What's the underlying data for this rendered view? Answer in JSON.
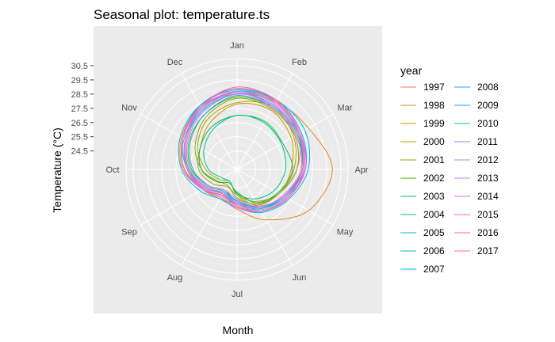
{
  "chart_data": {
    "type": "line",
    "coord": "polar",
    "title": "Seasonal plot: temperature.ts",
    "xlabel": "Month",
    "ylabel": "Temperature (°C)",
    "months": [
      "Jan",
      "Feb",
      "Mar",
      "Apr",
      "May",
      "Jun",
      "Jul",
      "Aug",
      "Sep",
      "Oct",
      "Nov",
      "Dec"
    ],
    "y_ticks": [
      24.5,
      25.5,
      26.5,
      27.5,
      28.5,
      29.5,
      30.5
    ],
    "ylim": [
      23.2,
      31.0
    ],
    "grid": true,
    "legend_title": "year",
    "legend_position": "right",
    "series": [
      {
        "name": "1997",
        "color": "#F8766D",
        "values": [
          28.7,
          28.6,
          28.2,
          27.4,
          26.6,
          26.1,
          25.6,
          25.6,
          26.0,
          26.9,
          27.6,
          28.2
        ]
      },
      {
        "name": "1998",
        "color": "#E7851E",
        "values": [
          28.5,
          28.7,
          29.0,
          29.9,
          29.0,
          27.3,
          26.0,
          25.5,
          26.0,
          27.0,
          27.7,
          28.3
        ]
      },
      {
        "name": "1999",
        "color": "#D09400",
        "values": [
          27.8,
          28.0,
          27.6,
          27.0,
          26.6,
          25.8,
          25.0,
          24.6,
          25.2,
          25.9,
          26.2,
          27.0
        ]
      },
      {
        "name": "2000",
        "color": "#B2A100",
        "values": [
          27.9,
          28.3,
          27.8,
          27.2,
          26.6,
          26.1,
          25.0,
          24.2,
          24.6,
          25.4,
          26.4,
          27.3
        ]
      },
      {
        "name": "2001",
        "color": "#89AC00",
        "values": [
          28.2,
          28.1,
          27.9,
          27.4,
          26.6,
          26.0,
          25.2,
          24.5,
          24.8,
          25.7,
          26.6,
          27.5
        ]
      },
      {
        "name": "2002",
        "color": "#45B500",
        "values": [
          28.3,
          28.2,
          28.0,
          27.8,
          27.0,
          26.2,
          25.5,
          24.9,
          25.5,
          26.4,
          27.1,
          27.7
        ]
      },
      {
        "name": "2003",
        "color": "#00BC51",
        "values": [
          27.0,
          27.1,
          26.9,
          27.1,
          26.5,
          25.9,
          24.8,
          24.3,
          24.9,
          25.7,
          26.2,
          26.7
        ]
      },
      {
        "name": "2004",
        "color": "#00C087",
        "values": [
          27.0,
          27.0,
          26.8,
          26.6,
          26.2,
          25.6,
          24.9,
          24.2,
          24.4,
          25.2,
          25.9,
          26.5
        ]
      },
      {
        "name": "2005",
        "color": "#00C0B2",
        "values": [
          28.6,
          28.4,
          28.0,
          27.8,
          27.0,
          26.3,
          25.4,
          25.1,
          25.8,
          26.7,
          27.6,
          28.3
        ]
      },
      {
        "name": "2006",
        "color": "#00BCD6",
        "values": [
          28.7,
          28.7,
          28.2,
          27.7,
          27.0,
          26.4,
          25.6,
          25.3,
          25.9,
          26.7,
          27.4,
          28.1
        ]
      },
      {
        "name": "2007",
        "color": "#00B3F2",
        "values": [
          28.8,
          28.8,
          28.7,
          28.2,
          27.4,
          26.7,
          25.9,
          25.6,
          26.2,
          27.1,
          27.8,
          28.4
        ]
      },
      {
        "name": "2008",
        "color": "#29A3FF",
        "values": [
          28.4,
          28.2,
          28.0,
          27.7,
          27.0,
          26.3,
          25.4,
          25.0,
          25.5,
          26.3,
          27.0,
          27.7
        ]
      },
      {
        "name": "2009",
        "color": "#00ADFA",
        "values": [
          28.9,
          28.8,
          28.4,
          28.0,
          27.2,
          26.6,
          25.8,
          25.3,
          26.0,
          26.9,
          27.6,
          28.4
        ]
      },
      {
        "name": "2010",
        "color": "#00C1A7",
        "values": [
          28.5,
          28.4,
          28.1,
          27.8,
          27.1,
          26.4,
          25.6,
          25.1,
          25.7,
          26.6,
          27.3,
          28.0
        ]
      },
      {
        "name": "2011",
        "color": "#619CFF",
        "values": [
          28.6,
          28.3,
          28.2,
          27.9,
          27.3,
          26.6,
          25.6,
          25.2,
          25.8,
          26.9,
          27.5,
          28.1
        ]
      },
      {
        "name": "2012",
        "color": "#9C8DFF",
        "values": [
          28.7,
          28.5,
          28.2,
          27.9,
          27.1,
          26.5,
          25.5,
          25.1,
          25.8,
          26.7,
          27.4,
          28.2
        ]
      },
      {
        "name": "2013",
        "color": "#C77CFF",
        "values": [
          28.5,
          28.4,
          28.0,
          27.7,
          27.0,
          26.2,
          25.3,
          24.9,
          25.6,
          26.5,
          27.2,
          27.9
        ]
      },
      {
        "name": "2014",
        "color": "#E76BF3",
        "values": [
          28.6,
          28.2,
          28.0,
          27.7,
          26.9,
          26.3,
          25.6,
          25.3,
          25.9,
          26.7,
          27.3,
          28.1
        ]
      },
      {
        "name": "2015",
        "color": "#FA62DB",
        "values": [
          28.6,
          28.6,
          28.3,
          28.0,
          27.3,
          26.6,
          25.9,
          25.4,
          26.0,
          26.9,
          27.6,
          28.3
        ]
      },
      {
        "name": "2016",
        "color": "#FF62BC",
        "values": [
          29.0,
          28.8,
          28.3,
          27.9,
          27.3,
          26.6,
          25.8,
          25.2,
          25.7,
          26.7,
          27.4,
          28.3
        ]
      },
      {
        "name": "2017",
        "color": "#FF6C91",
        "values": [
          28.9,
          28.7,
          28.2,
          27.8,
          27.2,
          26.6,
          25.7,
          25.3,
          25.9,
          26.9,
          27.6,
          28.3
        ]
      }
    ]
  }
}
